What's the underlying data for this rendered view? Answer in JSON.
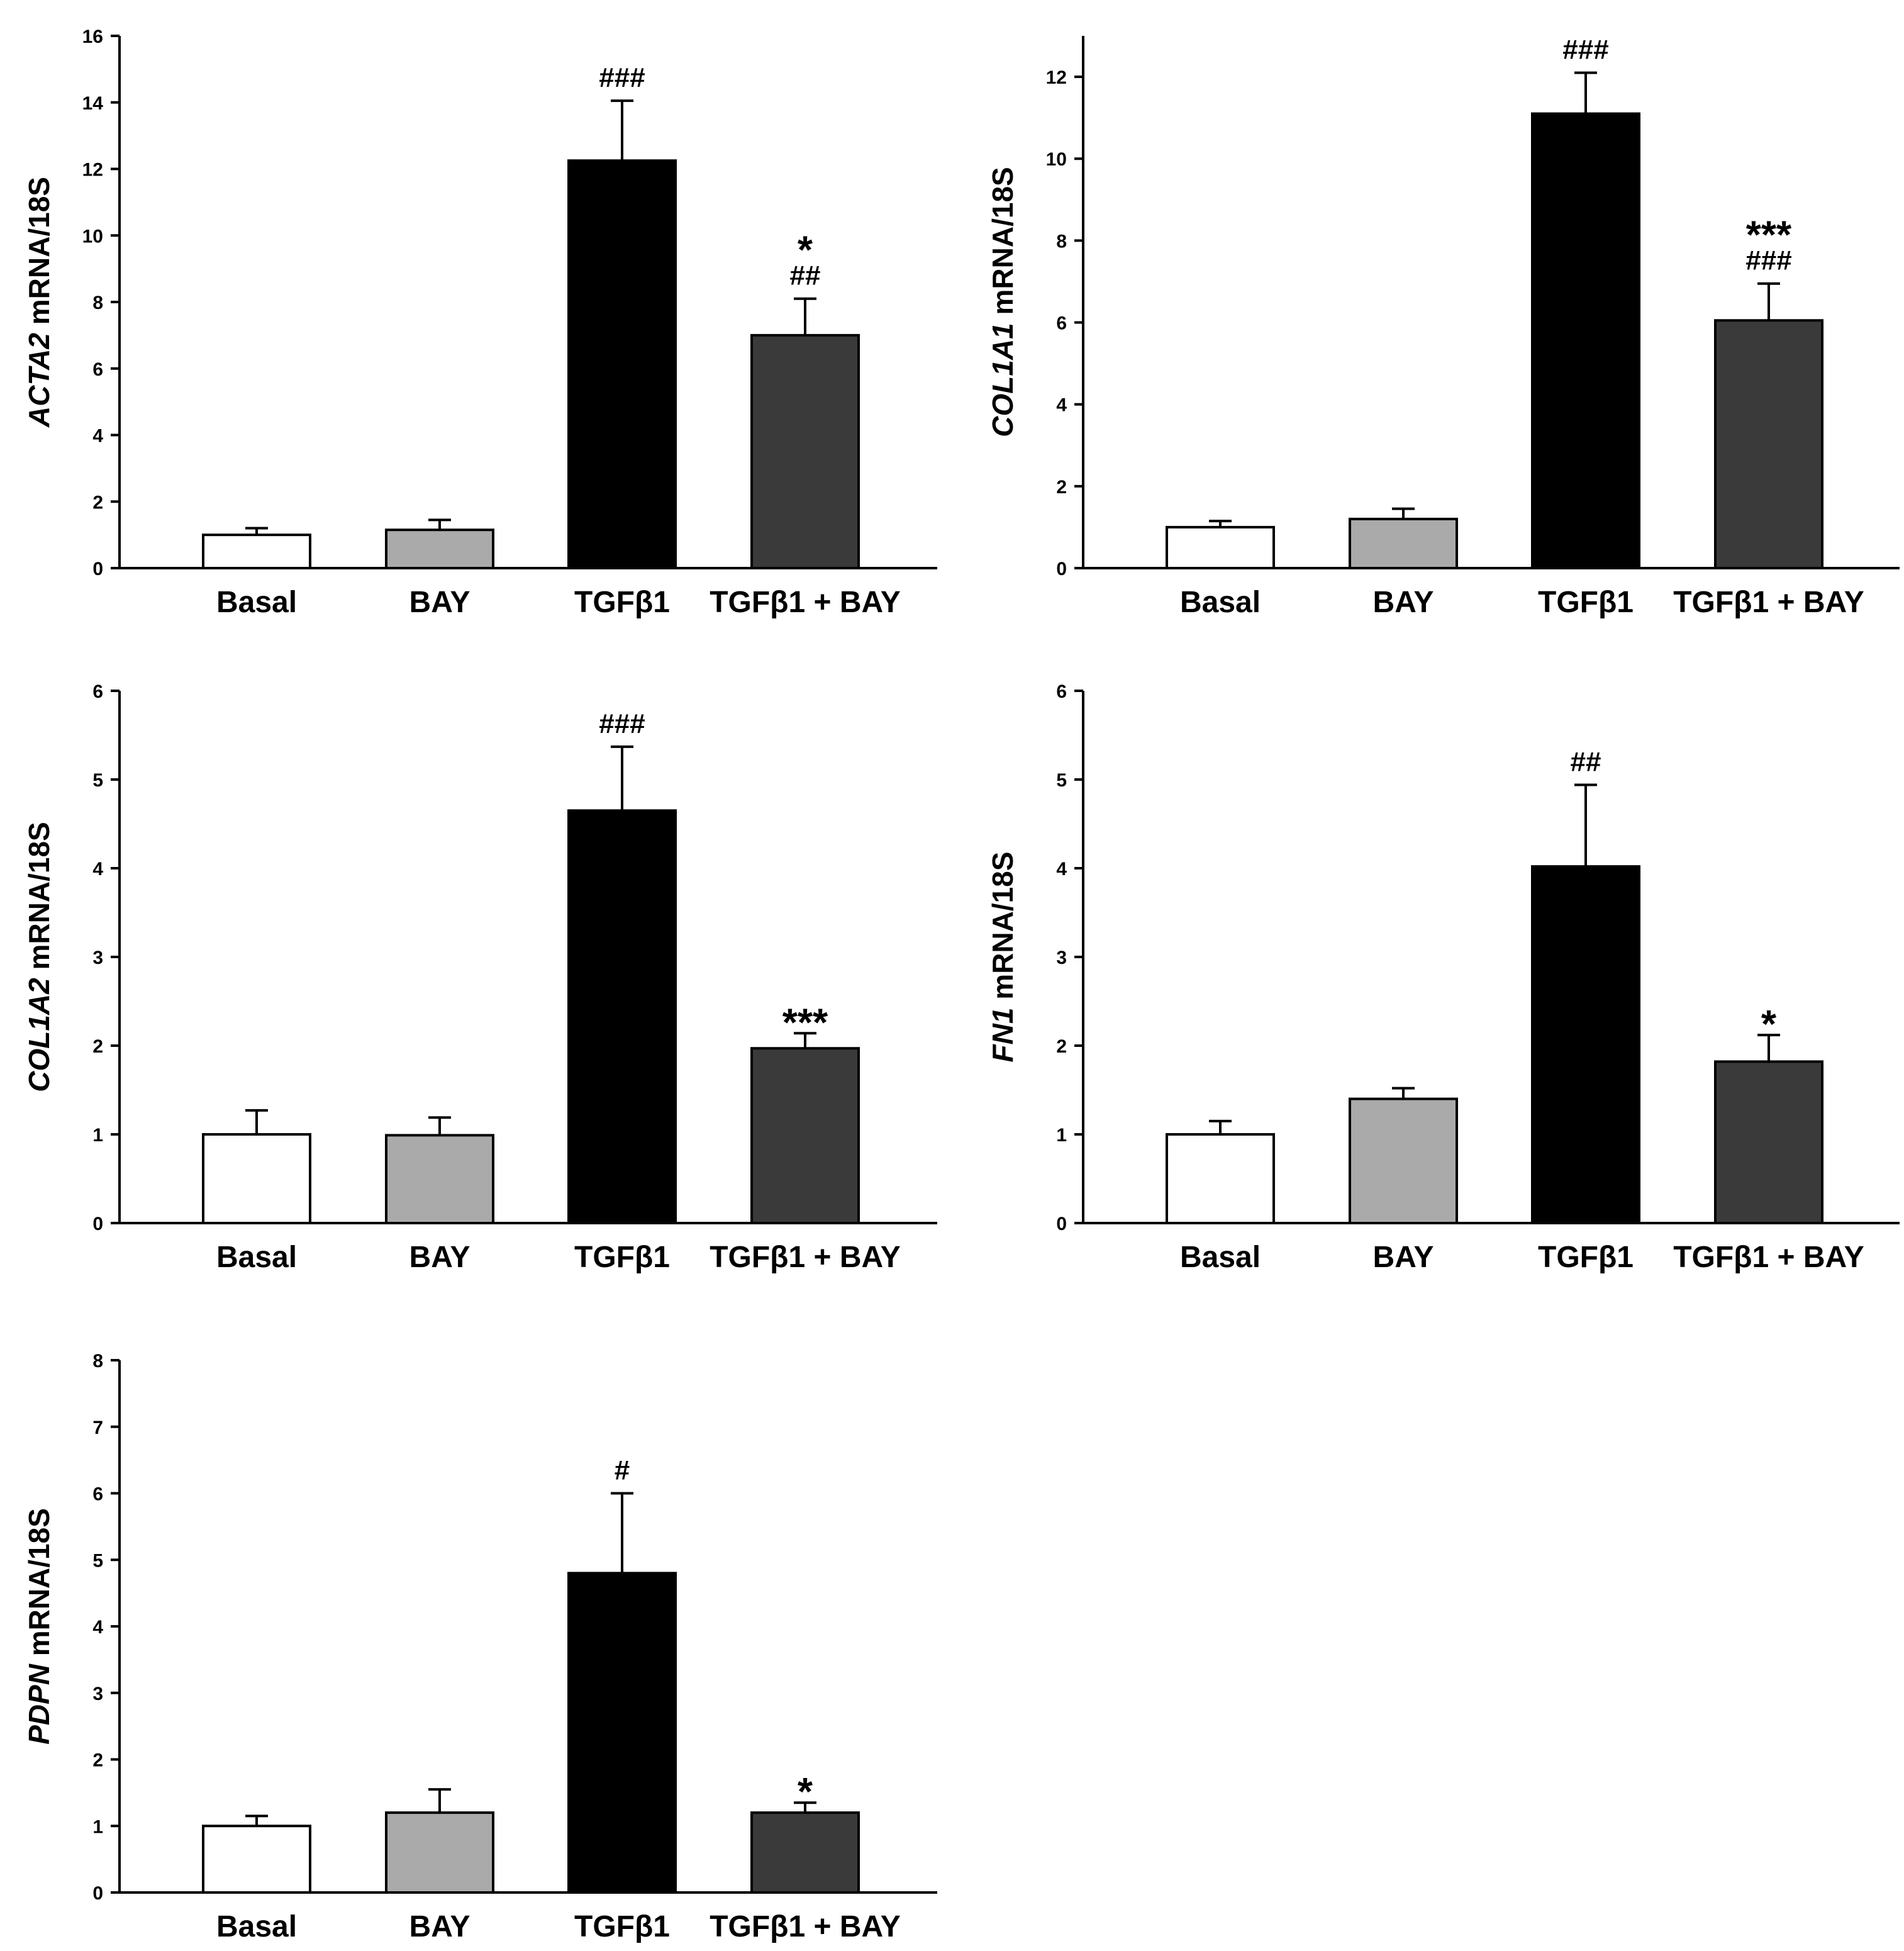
{
  "chart_data": [
    {
      "type": "bar",
      "gene": "ACTA2",
      "ylabel_suffix": " mRNA/18S",
      "categories": [
        "Basal",
        "BAY",
        "TGFβ1",
        "TGFβ1 + BAY"
      ],
      "values": [
        1.0,
        1.15,
        12.25,
        7.0
      ],
      "errors": [
        0.2,
        0.3,
        1.8,
        1.1
      ],
      "annotations": [
        [],
        [],
        [
          "###"
        ],
        [
          "*",
          "##"
        ]
      ],
      "ylim": [
        0,
        16
      ],
      "yticks": [
        0,
        2,
        4,
        6,
        8,
        10,
        12,
        14,
        16
      ],
      "colors": [
        "#ffffff",
        "#aaaaaa",
        "#000000",
        "#3a3a3a"
      ]
    },
    {
      "type": "bar",
      "gene": "COL1A1",
      "ylabel_suffix": " mRNA/18S",
      "categories": [
        "Basal",
        "BAY",
        "TGFβ1",
        "TGFβ1 + BAY"
      ],
      "values": [
        1.0,
        1.2,
        11.1,
        6.05
      ],
      "errors": [
        0.15,
        0.25,
        1.0,
        0.9
      ],
      "annotations": [
        [],
        [],
        [
          "###"
        ],
        [
          "***",
          "###"
        ]
      ],
      "ylim": [
        0,
        13
      ],
      "yticks": [
        0,
        2,
        4,
        6,
        8,
        10,
        12
      ],
      "colors": [
        "#ffffff",
        "#aaaaaa",
        "#000000",
        "#3a3a3a"
      ]
    },
    {
      "type": "bar",
      "gene": "COL1A2",
      "ylabel_suffix": " mRNA/18S",
      "categories": [
        "Basal",
        "BAY",
        "TGFβ1",
        "TGFβ1 + BAY"
      ],
      "values": [
        1.0,
        0.99,
        4.65,
        1.97
      ],
      "errors": [
        0.27,
        0.2,
        0.72,
        0.17
      ],
      "annotations": [
        [],
        [],
        [
          "###"
        ],
        [
          "***"
        ]
      ],
      "ylim": [
        0,
        6
      ],
      "yticks": [
        0,
        1,
        2,
        3,
        4,
        5,
        6
      ],
      "colors": [
        "#ffffff",
        "#aaaaaa",
        "#000000",
        "#3a3a3a"
      ]
    },
    {
      "type": "bar",
      "gene": "FN1",
      "ylabel_suffix": " mRNA/18S",
      "categories": [
        "Basal",
        "BAY",
        "TGFβ1",
        "TGFβ1 + BAY"
      ],
      "values": [
        1.0,
        1.4,
        4.02,
        1.82
      ],
      "errors": [
        0.15,
        0.12,
        0.92,
        0.3
      ],
      "annotations": [
        [],
        [],
        [
          "##"
        ],
        [
          "*"
        ]
      ],
      "ylim": [
        0,
        6
      ],
      "yticks": [
        0,
        1,
        2,
        3,
        4,
        5,
        6
      ],
      "colors": [
        "#ffffff",
        "#aaaaaa",
        "#000000",
        "#3a3a3a"
      ]
    },
    {
      "type": "bar",
      "gene": "PDPN",
      "ylabel_suffix": " mRNA/18S",
      "categories": [
        "Basal",
        "BAY",
        "TGFβ1",
        "TGFβ1 + BAY"
      ],
      "values": [
        1.0,
        1.2,
        4.8,
        1.2
      ],
      "errors": [
        0.15,
        0.35,
        1.2,
        0.15
      ],
      "annotations": [
        [],
        [],
        [
          "#"
        ],
        [
          "*"
        ]
      ],
      "ylim": [
        0,
        8
      ],
      "yticks": [
        0,
        1,
        2,
        3,
        4,
        5,
        6,
        7,
        8
      ],
      "colors": [
        "#ffffff",
        "#aaaaaa",
        "#000000",
        "#3a3a3a"
      ]
    }
  ]
}
